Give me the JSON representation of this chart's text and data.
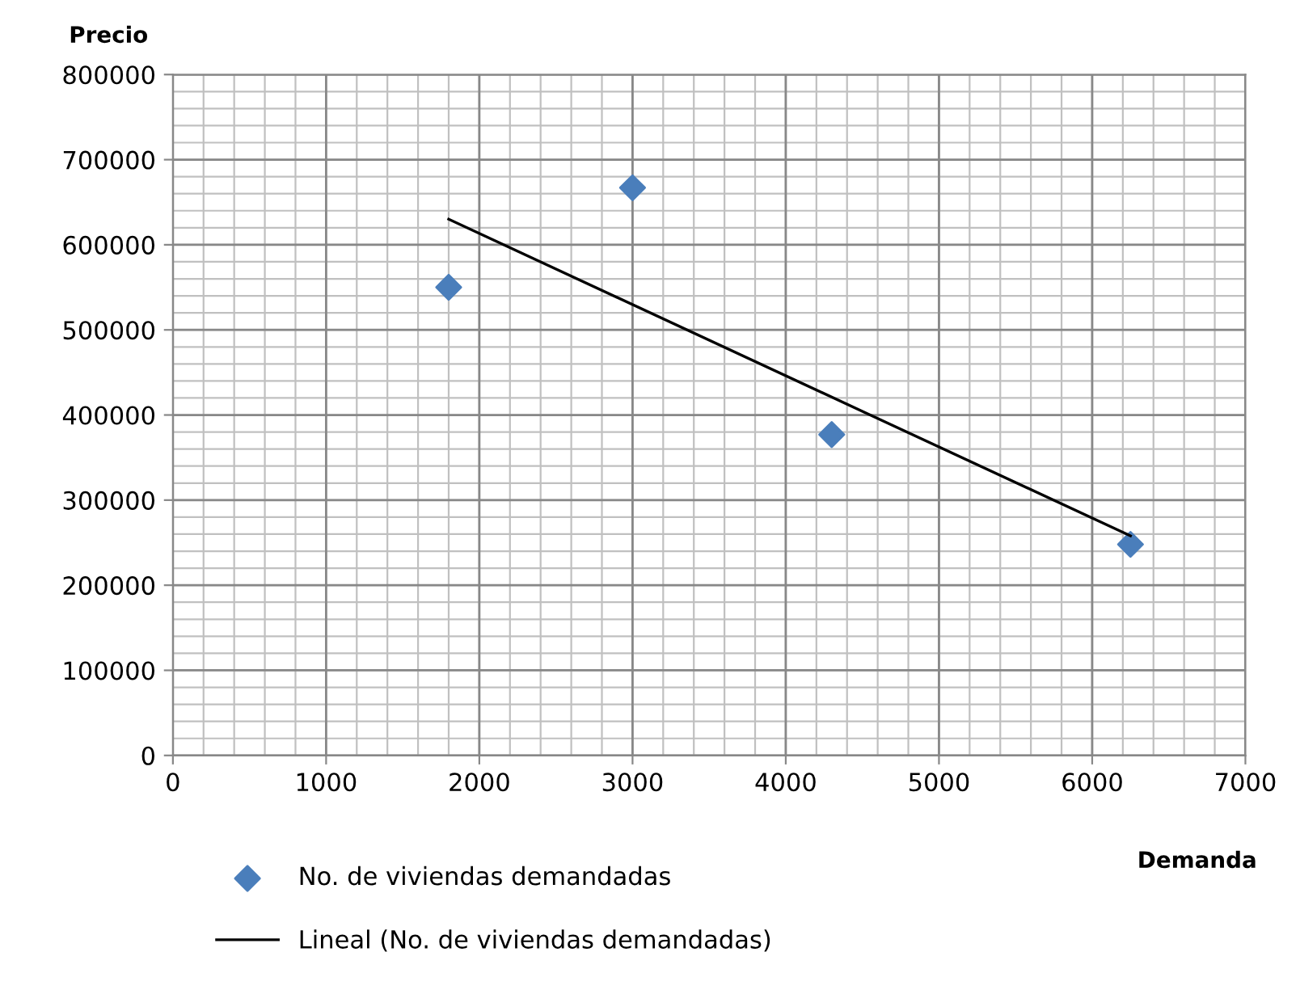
{
  "chart_data": {
    "type": "scatter",
    "xlabel": "Demanda",
    "ylabel": "Precio",
    "series": [
      {
        "name": "No. de viviendas demandadas",
        "color": "#4a7ebb",
        "marker": "diamond",
        "x": [
          1800,
          3000,
          4300,
          6250
        ],
        "values": [
          550000,
          667000,
          377000,
          248000
        ]
      },
      {
        "name": "Lineal (No. de viviendas demandadas)",
        "type": "line",
        "color": "#000000",
        "marker": "none",
        "line_style": "solid",
        "x": [
          1800,
          6250
        ],
        "values": [
          630000,
          258000
        ]
      }
    ],
    "xlim": [
      0,
      7000
    ],
    "xticks": [
      0,
      1000,
      2000,
      3000,
      4000,
      5000,
      6000,
      7000
    ],
    "ylim": [
      0,
      800000
    ],
    "yticks": [
      0,
      100000,
      200000,
      300000,
      400000,
      500000,
      600000,
      700000,
      800000
    ],
    "grid": true,
    "legend": "bottom"
  }
}
